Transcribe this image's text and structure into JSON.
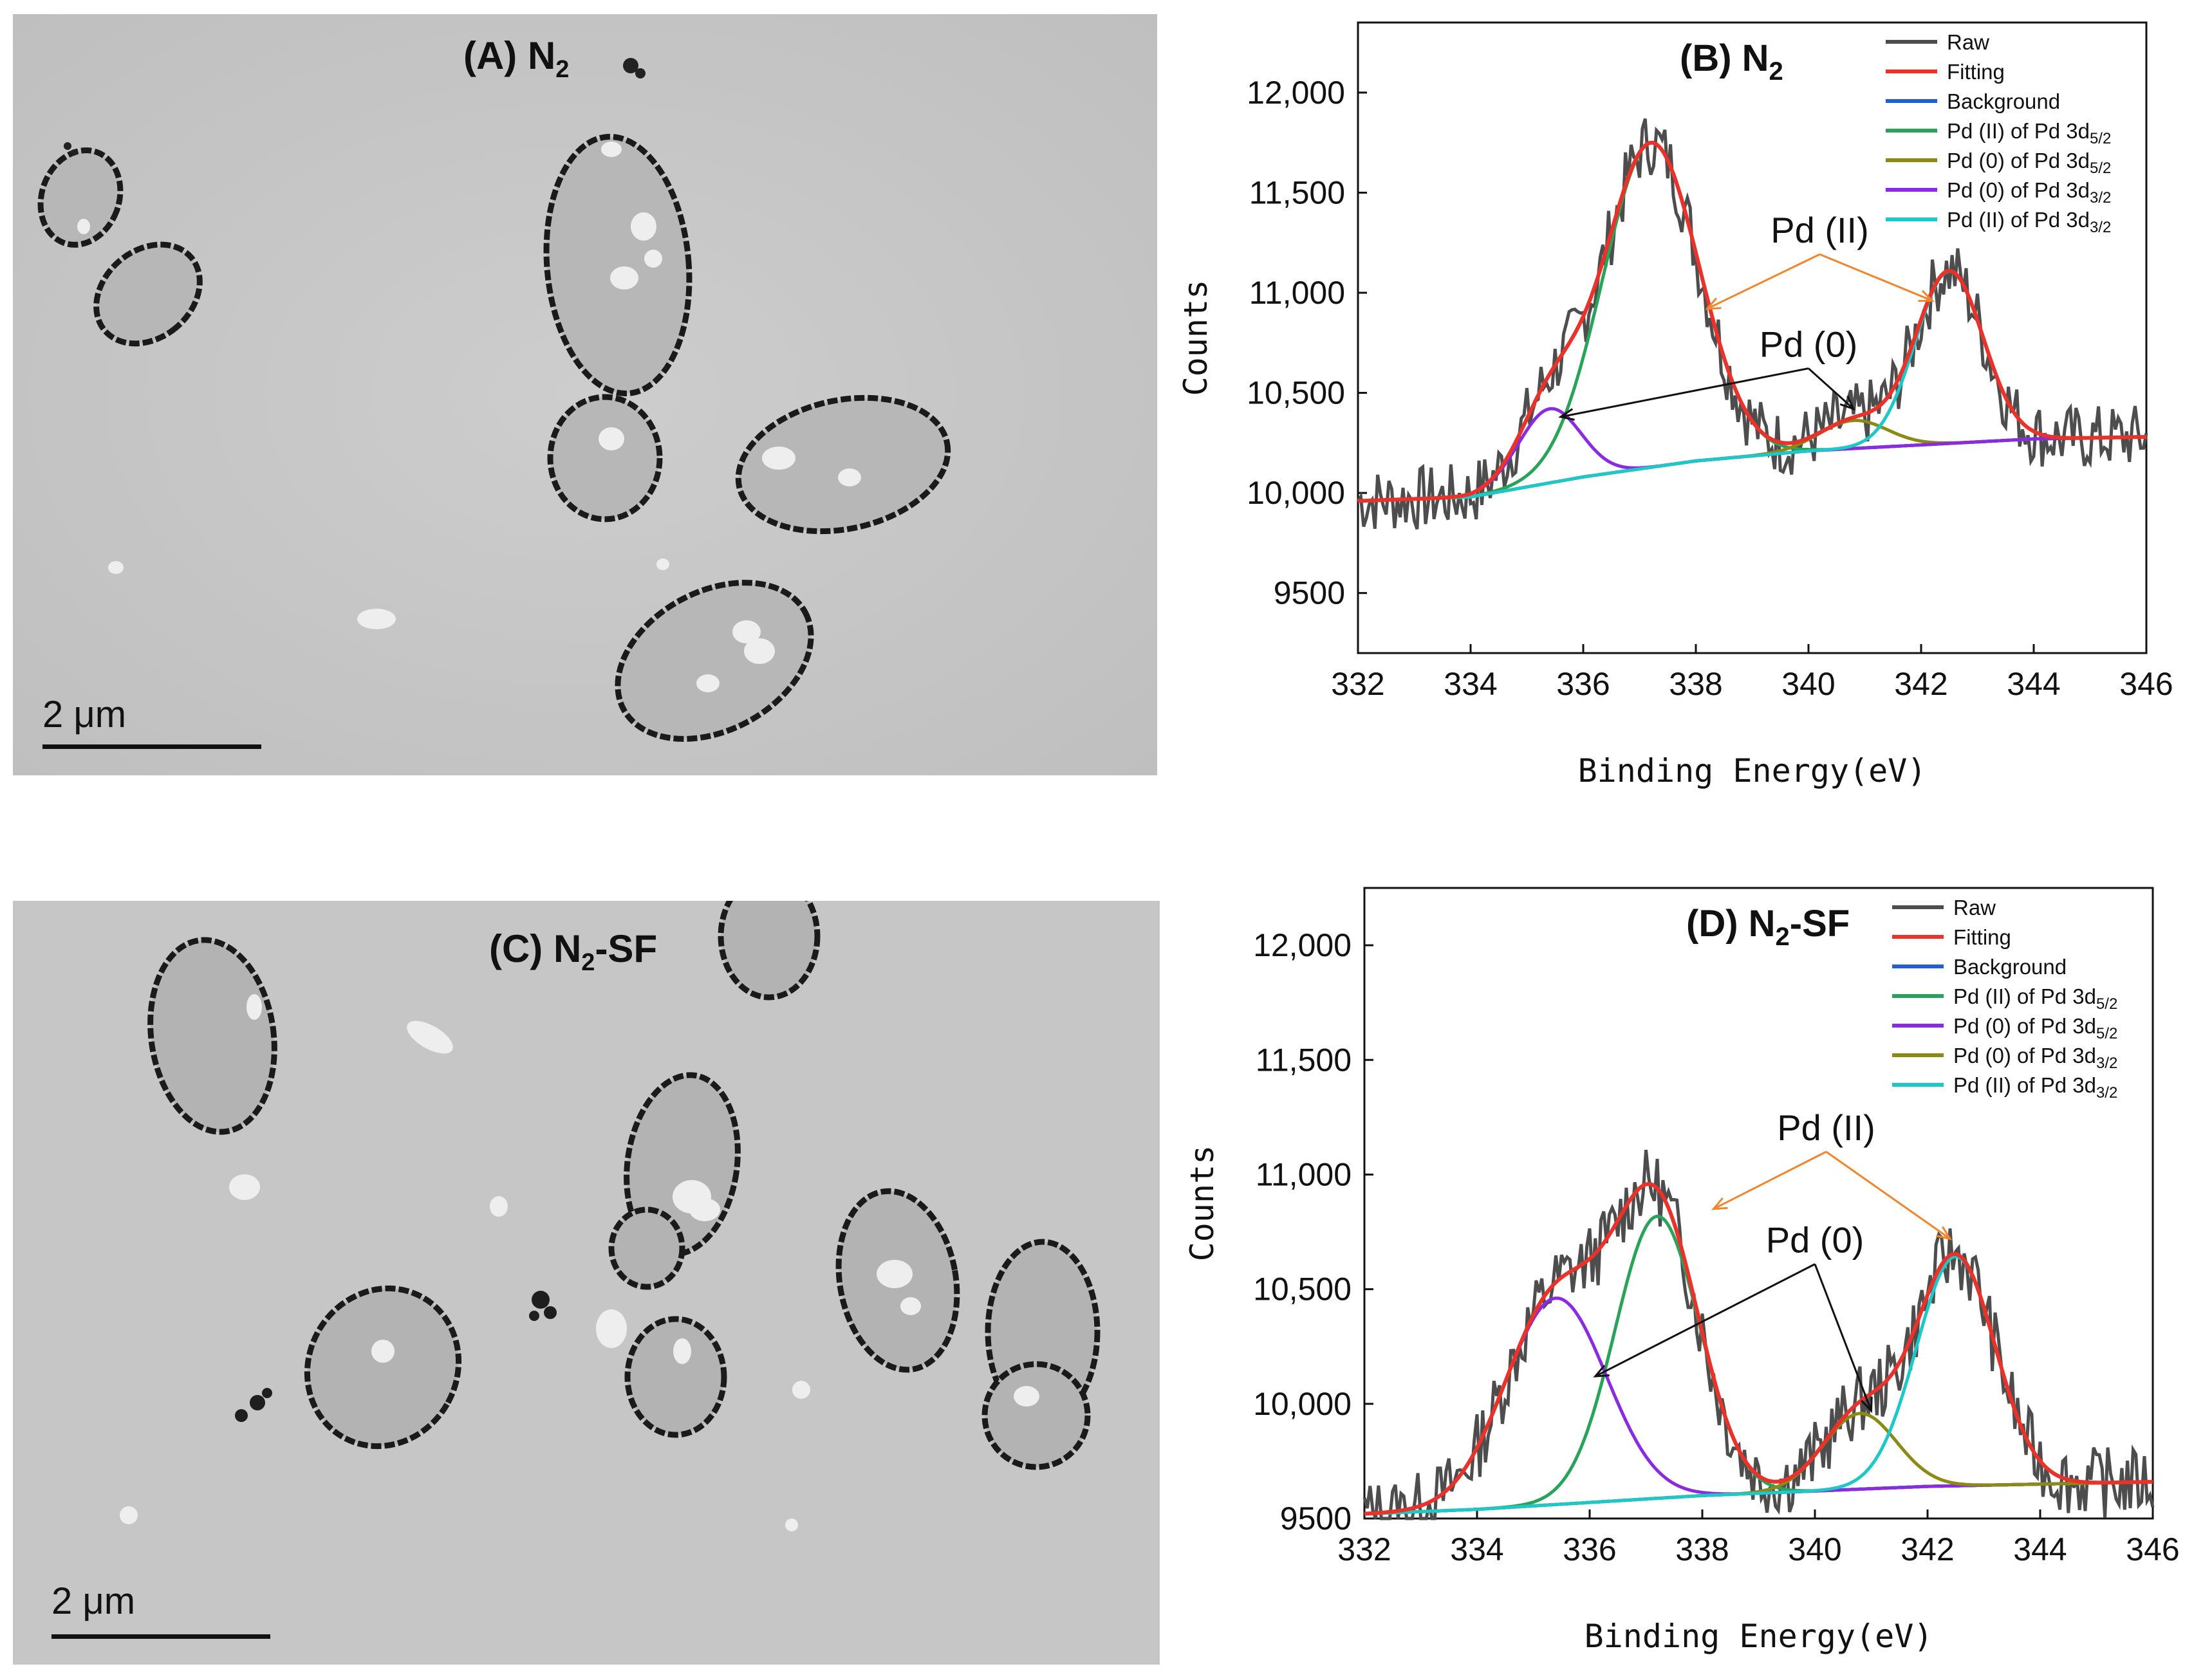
{
  "panels": {
    "A": {
      "label": "(A) N",
      "sub": "2",
      "suffix": "",
      "scale": "2 μm"
    },
    "C": {
      "label": "(C) N",
      "sub": "2",
      "suffix": "-SF",
      "scale": "2 μm"
    }
  },
  "colors": {
    "raw": "#4d4d4d",
    "fitting": "#e8322a",
    "background": "#1f5fd1",
    "pd2_52": "#29a35a",
    "pd0_a": "#8a8a14",
    "pd0_b": "#8a2be2",
    "pd2_32": "#1ec8c8",
    "annot_pd2": "#f0852d",
    "annot_pd0": "#111111"
  },
  "chart_data": [
    {
      "id": "B",
      "type": "line",
      "title": {
        "text": "(B) N",
        "sub": "2",
        "suffix": ""
      },
      "xlabel": "Binding Energy(eV)",
      "ylabel": "Counts",
      "xlim": [
        332,
        346
      ],
      "ylim": [
        9200,
        12350
      ],
      "xticks": [
        332,
        334,
        336,
        338,
        340,
        342,
        344,
        346
      ],
      "yticks": [
        9500,
        10000,
        10500,
        11000,
        11500,
        12000
      ],
      "ytick_labels": [
        "9500",
        "10,000",
        "10,500",
        "11,000",
        "11,500",
        "12,000"
      ],
      "xtick_labels": [
        "332",
        "334",
        "336",
        "338",
        "340",
        "342",
        "344",
        "346"
      ],
      "legend": [
        {
          "text": "Raw",
          "sub": "",
          "color_key": "raw"
        },
        {
          "text": "Fitting",
          "sub": "",
          "color_key": "fitting"
        },
        {
          "text": "Background",
          "sub": "",
          "color_key": "background"
        },
        {
          "text": "Pd (II) of Pd 3d",
          "sub": "5/2",
          "color_key": "pd2_52"
        },
        {
          "text": "Pd (0) of Pd 3d",
          "sub": "5/2",
          "color_key": "pd0_a"
        },
        {
          "text": "Pd (0) of Pd 3d",
          "sub": "3/2",
          "color_key": "pd0_b"
        },
        {
          "text": "Pd (II) of Pd 3d",
          "sub": "3/2",
          "color_key": "pd2_32"
        }
      ],
      "background_pts": [
        [
          332,
          9960
        ],
        [
          334,
          9980
        ],
        [
          336,
          10080
        ],
        [
          338,
          10160
        ],
        [
          340,
          10210
        ],
        [
          342,
          10240
        ],
        [
          344,
          10270
        ],
        [
          346,
          10280
        ]
      ],
      "peaks": [
        {
          "color_key": "pd2_52",
          "center": 337.2,
          "amp": 1620,
          "sigma": 0.85,
          "base": "background"
        },
        {
          "color_key": "pd0_a",
          "center": 340.8,
          "amp": 140,
          "sigma": 0.6,
          "base": "background"
        },
        {
          "color_key": "pd0_b",
          "center": 335.4,
          "amp": 370,
          "sigma": 0.55,
          "base": "background"
        },
        {
          "color_key": "pd2_32",
          "center": 342.5,
          "amp": 860,
          "sigma": 0.6,
          "base": "background"
        }
      ],
      "raw_noise": 120,
      "raw_seed": 7,
      "annotations": [
        {
          "text": "Pd (II)",
          "color_key": "annot_pd2",
          "text_at": [
            340.2,
            11250
          ],
          "targets": [
            [
              338.2,
              10920
            ],
            [
              342.2,
              10960
            ]
          ]
        },
        {
          "text": "Pd (0)",
          "color_key": "annot_pd0",
          "text_at": [
            340.0,
            10680
          ],
          "targets": [
            [
              335.6,
              10380
            ],
            [
              340.8,
              10420
            ]
          ]
        }
      ]
    },
    {
      "id": "D",
      "type": "line",
      "title": {
        "text": "(D) N",
        "sub": "2",
        "suffix": "-SF"
      },
      "xlabel": "Binding Energy(eV)",
      "ylabel": "Counts",
      "xlim": [
        332,
        346
      ],
      "ylim": [
        9500,
        12250
      ],
      "xticks": [
        332,
        334,
        336,
        338,
        340,
        342,
        344,
        346
      ],
      "yticks": [
        9500,
        10000,
        10500,
        11000,
        11500,
        12000
      ],
      "ytick_labels": [
        "9500",
        "10,000",
        "10,500",
        "11,000",
        "11,500",
        "12,000"
      ],
      "xtick_labels": [
        "332",
        "334",
        "336",
        "338",
        "340",
        "342",
        "344",
        "346"
      ],
      "legend": [
        {
          "text": "Raw",
          "sub": "",
          "color_key": "raw"
        },
        {
          "text": "Fitting",
          "sub": "",
          "color_key": "fitting"
        },
        {
          "text": "Background",
          "sub": "",
          "color_key": "background"
        },
        {
          "text": "Pd (II) of Pd 3d",
          "sub": "5/2",
          "color_key": "pd2_52"
        },
        {
          "text": "Pd (0) of Pd 3d",
          "sub": "5/2",
          "color_key": "pd0_b"
        },
        {
          "text": "Pd (0) of Pd 3d",
          "sub": "3/2",
          "color_key": "pd0_a"
        },
        {
          "text": "Pd (II) of Pd 3d",
          "sub": "3/2",
          "color_key": "pd2_32"
        }
      ],
      "background_pts": [
        [
          332,
          9520
        ],
        [
          334,
          9540
        ],
        [
          336,
          9570
        ],
        [
          338,
          9600
        ],
        [
          340,
          9620
        ],
        [
          342,
          9640
        ],
        [
          344,
          9650
        ],
        [
          346,
          9660
        ]
      ],
      "peaks": [
        {
          "color_key": "pd2_52",
          "center": 337.2,
          "amp": 1230,
          "sigma": 0.75,
          "base": "background"
        },
        {
          "color_key": "pd0_b",
          "center": 335.4,
          "amp": 900,
          "sigma": 0.9,
          "base": "background"
        },
        {
          "color_key": "pd0_a",
          "center": 340.8,
          "amp": 330,
          "sigma": 0.65,
          "base": "background"
        },
        {
          "color_key": "pd2_32",
          "center": 342.5,
          "amp": 1000,
          "sigma": 0.7,
          "base": "background"
        }
      ],
      "raw_noise": 110,
      "raw_seed": 13,
      "annotations": [
        {
          "text": "Pd (II)",
          "color_key": "annot_pd2",
          "text_at": [
            340.2,
            11150
          ],
          "targets": [
            [
              338.2,
              10850
            ],
            [
              342.4,
              10720
            ]
          ]
        },
        {
          "text": "Pd (0)",
          "color_key": "annot_pd0",
          "text_at": [
            340.0,
            10660
          ],
          "targets": [
            [
              336.1,
              10120
            ],
            [
              341.0,
              9970
            ]
          ]
        }
      ]
    }
  ]
}
